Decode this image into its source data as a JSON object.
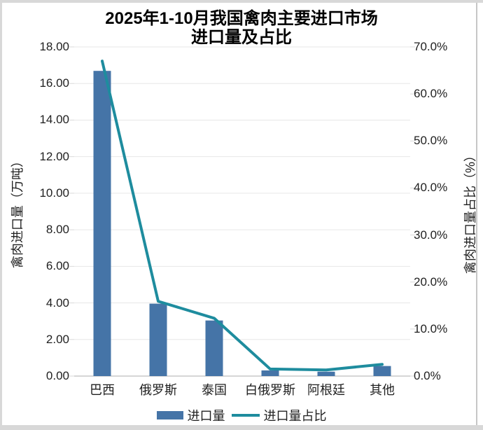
{
  "title": {
    "line1": "2025年1-10月我国禽肉主要进口市场",
    "line2": "进口量及占比"
  },
  "chart_data": {
    "type": "combo-bar-line",
    "categories": [
      "巴西",
      "俄罗斯",
      "泰国",
      "白俄罗斯",
      "阿根廷",
      "其他"
    ],
    "series": [
      {
        "name": "进口量",
        "type": "bar",
        "axis": "left",
        "unit": "万吨",
        "color": "#4574A7",
        "values": [
          16.69,
          3.96,
          3.04,
          0.31,
          0.24,
          0.55
        ]
      },
      {
        "name": "进口量占比",
        "type": "line",
        "axis": "right",
        "unit": "%",
        "color": "#1E8C9E",
        "values": [
          67.0,
          15.9,
          12.3,
          1.5,
          1.3,
          2.5
        ]
      }
    ],
    "left_axis": {
      "title": "禽肉进口量（万吨）",
      "min": 0,
      "max": 18,
      "step": 2,
      "tick_labels": [
        "0.00",
        "2.00",
        "4.00",
        "6.00",
        "8.00",
        "10.00",
        "12.00",
        "14.00",
        "16.00",
        "18.00"
      ]
    },
    "right_axis": {
      "title": "禽肉进口量占比（%）",
      "min": 0,
      "max": 70,
      "step": 10,
      "tick_labels": [
        "0.0%",
        "10.0%",
        "20.0%",
        "30.0%",
        "40.0%",
        "50.0%",
        "60.0%",
        "70.0%"
      ]
    },
    "grid": true,
    "legend_position": "bottom"
  },
  "legend": {
    "items": [
      {
        "label": "进口量",
        "marker": "bar-swatch",
        "color": "#4574A7"
      },
      {
        "label": "进口量占比",
        "marker": "line-swatch",
        "color": "#1E8C9E"
      }
    ]
  },
  "colors": {
    "bar": "#4574A7",
    "line": "#1E8C9E",
    "grid": "#e7e7e7",
    "axis_line": "#c8c8c8",
    "tick": "#d9d9d9",
    "frame": "#d8d8d8",
    "text": "#1f1f1f"
  }
}
